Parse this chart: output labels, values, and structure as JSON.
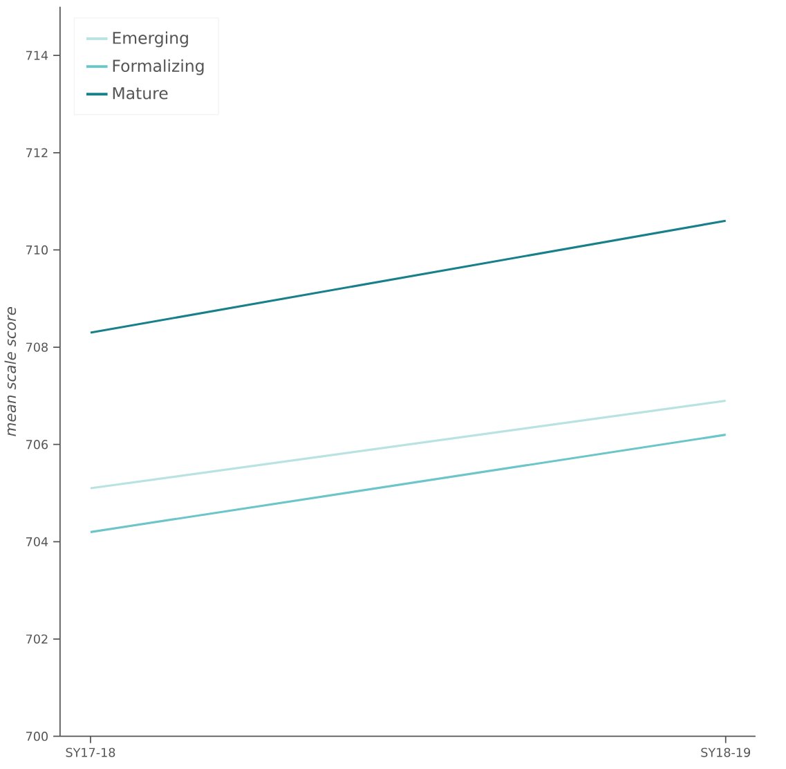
{
  "chart_data": {
    "type": "line",
    "ylabel": "mean scale score",
    "categories": [
      "SY17-18",
      "SY18-19"
    ],
    "series": [
      {
        "name": "Emerging",
        "color": "#b9e3e3",
        "values": [
          705.1,
          706.9
        ]
      },
      {
        "name": "Formalizing",
        "color": "#6cc5c9",
        "values": [
          704.2,
          706.2
        ]
      },
      {
        "name": "Mature",
        "color": "#17808a",
        "values": [
          708.3,
          710.6
        ]
      }
    ],
    "ylim": [
      700,
      715
    ],
    "yticks": [
      700,
      702,
      704,
      706,
      708,
      710,
      712,
      714
    ],
    "grid": false,
    "legend": "top left",
    "marker": "none",
    "line_style": "solid"
  }
}
